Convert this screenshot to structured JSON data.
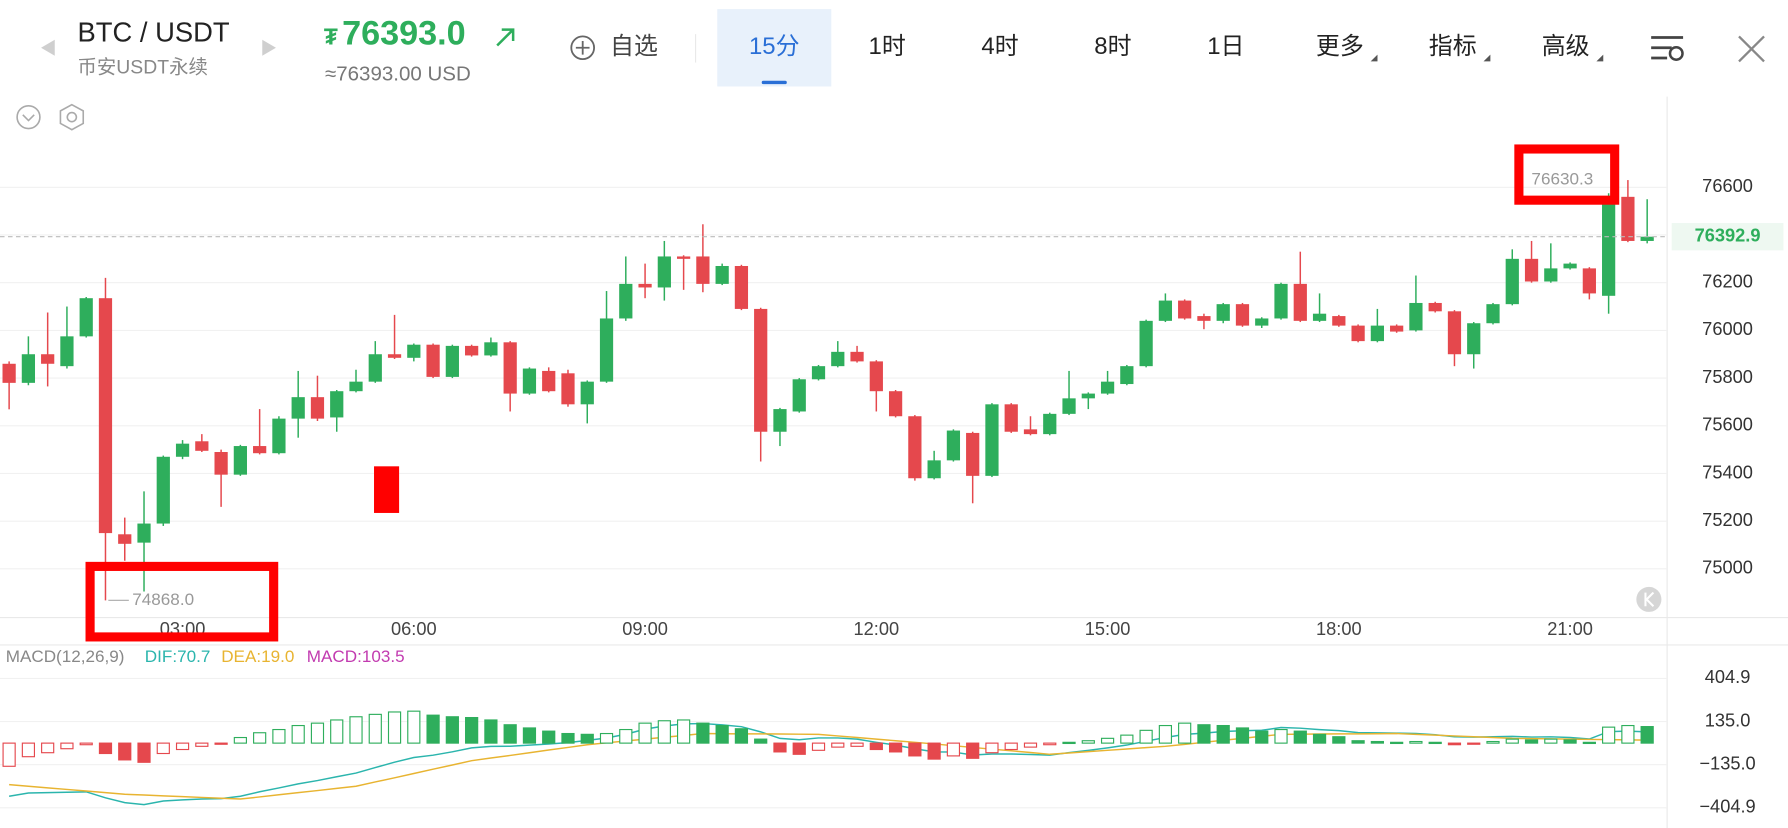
{
  "header": {
    "pair": "BTC / USDT",
    "market": "币安USDT永续",
    "price_symbol": "₮",
    "price": "76393.0",
    "price_usd": "≈76393.00 USD",
    "watchlist": "自选",
    "tabs": [
      "15分",
      "1时",
      "4时",
      "8时",
      "1日",
      "更多",
      "指标",
      "高级"
    ]
  },
  "chart_data": [
    {
      "type": "candlestick",
      "categories": [
        null,
        null,
        null,
        null,
        null,
        null,
        null,
        null,
        null,
        "03:00",
        null,
        null,
        null,
        null,
        null,
        null,
        null,
        null,
        null,
        null,
        null,
        "06:00",
        null,
        null,
        null,
        null,
        null,
        null,
        null,
        null,
        null,
        null,
        null,
        "09:00",
        null,
        null,
        null,
        null,
        null,
        null,
        null,
        null,
        null,
        null,
        null,
        "12:00",
        null,
        null,
        null,
        null,
        null,
        null,
        null,
        null,
        null,
        null,
        null,
        "15:00",
        null,
        null,
        null,
        null,
        null,
        null,
        null,
        null,
        null,
        null,
        null,
        "18:00",
        null,
        null,
        null,
        null,
        null,
        null,
        null,
        null,
        null,
        null,
        null,
        "21:00",
        null,
        null,
        null,
        null
      ],
      "open": [
        75860,
        75780,
        75900,
        75850,
        75975,
        76135,
        75145,
        75110,
        75190,
        75470,
        75535,
        75490,
        75395,
        75515,
        75485,
        75630,
        75720,
        75635,
        75745,
        75785,
        75900,
        75885,
        75940,
        75805,
        75935,
        75895,
        75950,
        75735,
        75830,
        75820,
        75690,
        75785,
        76050,
        76195,
        76180,
        76310,
        76310,
        76195,
        76270,
        76090,
        75575,
        75660,
        75795,
        75850,
        75910,
        75870,
        75745,
        75640,
        75380,
        75455,
        75570,
        75390,
        75690,
        75585,
        75565,
        75650,
        75715,
        75735,
        75775,
        75850,
        76040,
        76125,
        76060,
        76040,
        76110,
        76020,
        76050,
        76195,
        76040,
        76060,
        76020,
        75955,
        76020,
        76000,
        76115,
        76080,
        75900,
        76030,
        76110,
        76300,
        76205,
        76260,
        76260,
        76145,
        76560,
        76375
      ],
      "high": [
        75870,
        75975,
        76075,
        76100,
        76140,
        76220,
        75215,
        75325,
        75475,
        75540,
        75565,
        75500,
        75520,
        75670,
        75640,
        75830,
        75810,
        75750,
        75835,
        75955,
        76065,
        75945,
        75945,
        75940,
        75940,
        75970,
        75955,
        75845,
        75845,
        75835,
        75790,
        76165,
        76310,
        76280,
        76375,
        76315,
        76445,
        76280,
        76275,
        76095,
        75675,
        75800,
        75855,
        75955,
        75935,
        75875,
        75750,
        75645,
        75495,
        75585,
        75575,
        75695,
        75695,
        75640,
        75655,
        75830,
        75740,
        75830,
        75855,
        76045,
        76155,
        76130,
        76070,
        76115,
        76115,
        76055,
        76200,
        76330,
        76155,
        76065,
        76025,
        76090,
        76025,
        76230,
        76120,
        76085,
        76035,
        76115,
        76340,
        76375,
        76365,
        76285,
        76265,
        76575,
        76630.3,
        76550
      ],
      "low": [
        75669,
        75770,
        75765,
        75840,
        75970,
        74868,
        75034,
        74905,
        75180,
        75460,
        75490,
        75260,
        75390,
        75480,
        75480,
        75550,
        75620,
        75575,
        75740,
        75780,
        75880,
        75870,
        75800,
        75800,
        75890,
        75890,
        75660,
        75730,
        75740,
        75680,
        75610,
        75780,
        76040,
        76135,
        76125,
        76170,
        76160,
        76190,
        76085,
        75450,
        75515,
        75655,
        75790,
        75845,
        75865,
        75660,
        75635,
        75370,
        75375,
        75450,
        75275,
        75385,
        75570,
        75560,
        75560,
        75645,
        75670,
        75730,
        75770,
        75845,
        76035,
        76045,
        76005,
        76030,
        76015,
        76010,
        76045,
        76035,
        76035,
        76015,
        75950,
        75950,
        75990,
        75995,
        76075,
        75850,
        75840,
        76025,
        76105,
        76200,
        76200,
        76255,
        76130,
        76070,
        76370,
        76365
      ],
      "close": [
        75780,
        75900,
        75860,
        75975,
        76135,
        75150,
        75105,
        75190,
        75470,
        75525,
        75495,
        75395,
        75515,
        75485,
        75630,
        75720,
        75630,
        75745,
        75785,
        75900,
        75885,
        75940,
        75805,
        75935,
        75895,
        75950,
        75735,
        75840,
        75745,
        75690,
        75785,
        76050,
        76195,
        76180,
        76310,
        76300,
        76195,
        76270,
        76090,
        75575,
        75670,
        75795,
        75850,
        75910,
        75870,
        75745,
        75640,
        75380,
        75455,
        75580,
        75390,
        75690,
        75575,
        75565,
        75650,
        75715,
        75735,
        75785,
        75850,
        76040,
        76125,
        76050,
        76040,
        76110,
        76020,
        76050,
        76195,
        76040,
        76070,
        76020,
        75955,
        76020,
        75995,
        76115,
        76080,
        75900,
        76030,
        76110,
        76300,
        76205,
        76260,
        76280,
        76155,
        76540,
        76375,
        76392.9
      ],
      "up_color": "#2eae5c",
      "down_color": "#e5484d",
      "ylim": [
        74810,
        76980
      ],
      "yticks": [
        75000,
        75200,
        75400,
        75600,
        75800,
        76000,
        76200,
        76400,
        76600
      ],
      "grid": true,
      "last_price": 76392.9,
      "max_label": 76630.3,
      "min_label": {
        "value": 74868,
        "label": "74868.0"
      }
    },
    {
      "type": "macd",
      "title": "MACD(12,26,9)",
      "series": [
        {
          "name": "DIF:70.7",
          "color": "#2bb5ad",
          "values": [
            -332.5,
            -312.5,
            -310,
            -307.5,
            -305,
            -342.5,
            -372.5,
            -385,
            -362.5,
            -355,
            -350,
            -347.5,
            -332.5,
            -304.5,
            -280.5,
            -255,
            -234.5,
            -210.5,
            -187.5,
            -153,
            -119.5,
            -90,
            -75.5,
            -54.5,
            -30,
            -20.5,
            -19.5,
            -12.5,
            -5.5,
            3,
            17.5,
            32,
            55.5,
            87.5,
            107,
            120.5,
            122.5,
            114,
            103,
            70.5,
            29.5,
            21,
            32.5,
            32.5,
            25,
            5,
            -12.5,
            -35,
            -55,
            -56,
            -74.5,
            -68,
            -68,
            -71.5,
            -75,
            -59.5,
            -45.5,
            -30,
            -12,
            12,
            35,
            54.5,
            62.5,
            73,
            77.5,
            80.5,
            97.5,
            93.5,
            84.5,
            78,
            65.5,
            64,
            62.5,
            60,
            52.5,
            40,
            37.5,
            40,
            42.5,
            38,
            39.5,
            35,
            25.5,
            72,
            75,
            70.7
          ]
        },
        {
          "name": "DEA:19.0",
          "color": "#e8b431",
          "values": [
            -260,
            -270,
            -280,
            -290,
            -300,
            -310,
            -320,
            -325,
            -330,
            -335,
            -340,
            -345,
            -350,
            -337,
            -323,
            -310,
            -297,
            -283,
            -270,
            -243,
            -217,
            -190,
            -163,
            -137,
            -110,
            -93,
            -77,
            -60,
            -43,
            -27,
            -10,
            2,
            13,
            25,
            37,
            48,
            60,
            59,
            58,
            58,
            57,
            56,
            55,
            45,
            35,
            25,
            15,
            5,
            -5,
            -16,
            -27,
            -38,
            -48,
            -59,
            -70,
            -62,
            -53,
            -45,
            -37,
            -28,
            -20,
            -8,
            5,
            18,
            30,
            43,
            55,
            56,
            57,
            58,
            58,
            59,
            60,
            55,
            50,
            45,
            40,
            35,
            30,
            28,
            27,
            25,
            23,
            22,
            20,
            19.0
          ]
        },
        {
          "name": "MACD:103.5",
          "color": "#c23bb0",
          "up_color": "#2eae5c",
          "down_color": "#e5484d",
          "values": [
            -145,
            -85,
            -60,
            -35,
            -10,
            -65,
            -105,
            -120,
            -65,
            -40,
            -20,
            -5,
            35,
            65,
            85,
            110,
            125,
            145,
            165,
            180,
            195,
            200,
            175,
            165,
            160,
            145,
            115,
            95,
            75,
            60,
            55,
            60,
            85,
            125,
            140,
            145,
            125,
            110,
            90,
            25,
            -55,
            -70,
            -45,
            -25,
            -20,
            -40,
            -55,
            -80,
            -100,
            -80,
            -95,
            -60,
            -40,
            -25,
            -10,
            5,
            15,
            30,
            50,
            80,
            110,
            125,
            115,
            110,
            95,
            75,
            85,
            75,
            55,
            40,
            15,
            10,
            5,
            10,
            5,
            -10,
            -5,
            10,
            25,
            20,
            25,
            20,
            5,
            100,
            110,
            103.5
          ]
        }
      ],
      "ylim": [
        -510,
        615
      ],
      "yticks": [
        {
          "value": -404.9,
          "label": "−404.9"
        },
        {
          "value": -135,
          "label": "−135.0"
        },
        {
          "value": 135,
          "label": "135.0"
        },
        404.9
      ],
      "grid": true
    }
  ]
}
